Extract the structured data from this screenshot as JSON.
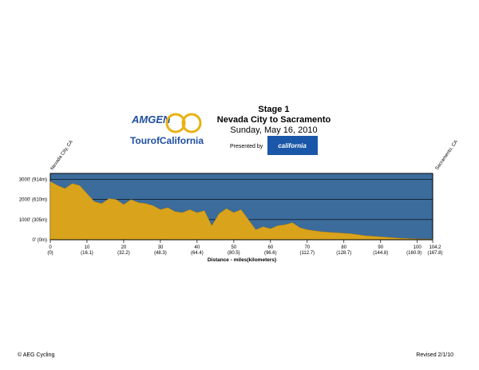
{
  "chart_data": {
    "type": "area",
    "title": "Stage 1",
    "subtitle": "Nevada City to Sacramento",
    "date": "Sunday, May 16, 2010",
    "presented_by": "Presented by",
    "sponsor": "california",
    "logo_top": "AMGEN",
    "logo_bottom": "TourofCalifornia",
    "start_label": "Nevada City, CA",
    "end_label": "Sacramento, CA",
    "x_label": "Distance - miles(kilometers)",
    "footer_left": "© AEG Cycling",
    "footer_right": "Revised 2/1/10",
    "color": "#d9a31c",
    "background": "#3b6c9c",
    "x": [
      0,
      2,
      4,
      6,
      8,
      10,
      12,
      14,
      16,
      18,
      20,
      22,
      24,
      26,
      28,
      30,
      32,
      34,
      36,
      38,
      40,
      42,
      44,
      46,
      48,
      50,
      52,
      54,
      56,
      58,
      60,
      62,
      64,
      66,
      68,
      70,
      74,
      78,
      82,
      86,
      90,
      95,
      100,
      104.2
    ],
    "values": [
      2900,
      2700,
      2550,
      2800,
      2700,
      2300,
      1900,
      1800,
      2050,
      2000,
      1750,
      2000,
      1850,
      1800,
      1700,
      1500,
      1600,
      1400,
      1350,
      1500,
      1350,
      1450,
      700,
      1300,
      1550,
      1350,
      1500,
      1000,
      500,
      650,
      550,
      700,
      750,
      850,
      600,
      500,
      400,
      350,
      300,
      200,
      150,
      80,
      40,
      30
    ],
    "xlim": [
      0,
      104.2
    ],
    "ylim": [
      0,
      3300
    ],
    "xticks": [
      0,
      10,
      20,
      30,
      40,
      50,
      60,
      70,
      80,
      90,
      100,
      104.2
    ],
    "xtick_km_labels": [
      "(0)",
      "(16.1)",
      "(32.2)",
      "(48.3)",
      "(64.4)",
      "(80.5)",
      "(96.6)",
      "(112.7)",
      "(128.7)",
      "(144.8)",
      "(160.9)",
      "(167.8)"
    ],
    "yticks": [
      {
        "value": 0,
        "label": "0' (0m)"
      },
      {
        "value": 1000,
        "label": "1000' (305m)"
      },
      {
        "value": 2000,
        "label": "2000' (610m)"
      },
      {
        "value": 3000,
        "label": "3000' (914m)"
      }
    ],
    "grid": true
  }
}
